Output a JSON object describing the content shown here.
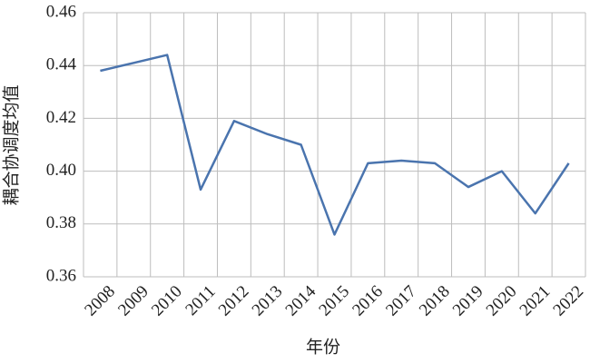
{
  "chart_data": {
    "type": "line",
    "xlabel": "年份",
    "ylabel": "耦合协调度均值",
    "categories": [
      "2008",
      "2009",
      "2010",
      "2011",
      "2012",
      "2013",
      "2014",
      "2015",
      "2016",
      "2017",
      "2018",
      "2019",
      "2020",
      "2021",
      "2022"
    ],
    "values": [
      0.438,
      0.441,
      0.444,
      0.393,
      0.419,
      0.414,
      0.41,
      0.376,
      0.403,
      0.404,
      0.403,
      0.394,
      0.4,
      0.384,
      0.403
    ],
    "color": "#4a74ae",
    "ylim": [
      0.36,
      0.46
    ],
    "yticks": [
      0.36,
      0.38,
      {
        "value": 0.4,
        "label": "0.40"
      },
      0.42,
      0.44,
      0.46
    ],
    "grid": true
  }
}
